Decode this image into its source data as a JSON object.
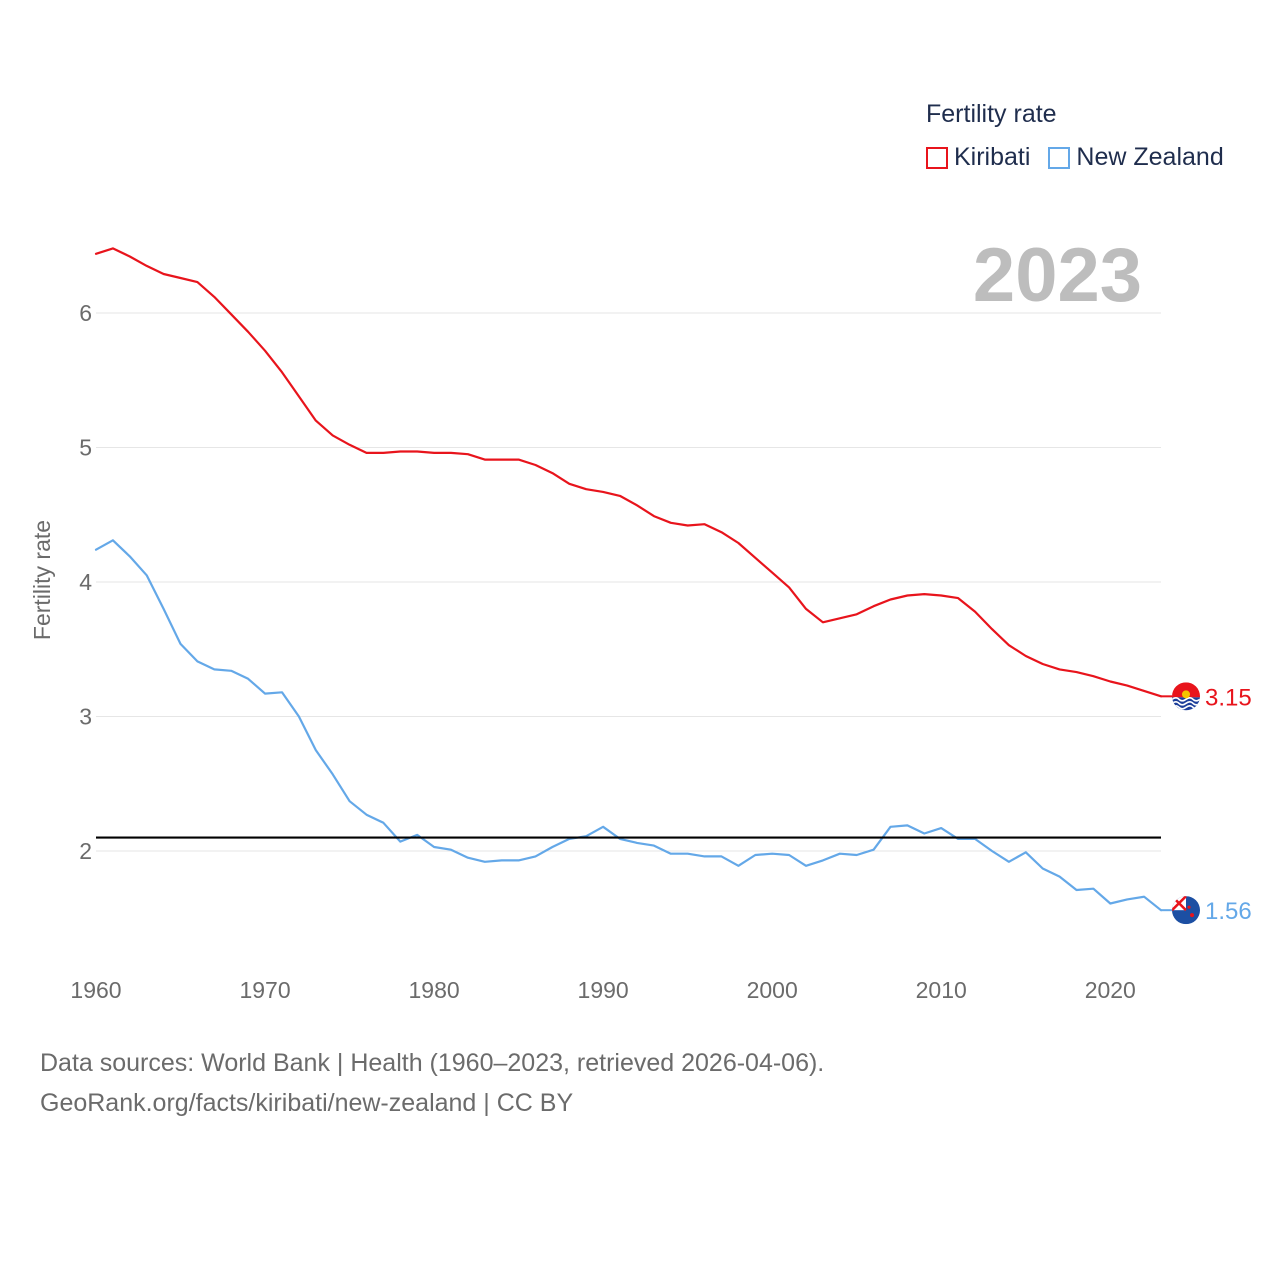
{
  "legend": {
    "title": "Fertility rate",
    "items": [
      {
        "label": "Kiribati",
        "color": "#e8141c"
      },
      {
        "label": "New Zealand",
        "color": "#64a8e8"
      }
    ]
  },
  "year_watermark": "2023",
  "footer": {
    "line1": "Data sources: World Bank | Health (1960–2023, retrieved 2026-04-06).",
    "line2": "GeoRank.org/facts/kiribati/new-zealand | CC BY"
  },
  "chart_data": {
    "type": "line",
    "ylabel": "Fertility rate",
    "xlabel": "",
    "xlim": [
      1960,
      2023
    ],
    "ylim": [
      1.4,
      6.6
    ],
    "xticks": [
      "1960",
      "1970",
      "1980",
      "1990",
      "2000",
      "2010",
      "2020"
    ],
    "yticks": [
      "2",
      "3",
      "4",
      "5",
      "6"
    ],
    "grid": true,
    "reference_line": {
      "value": 2.1,
      "color": "#000000"
    },
    "x": [
      1960,
      1961,
      1962,
      1963,
      1964,
      1965,
      1966,
      1967,
      1968,
      1969,
      1970,
      1971,
      1972,
      1973,
      1974,
      1975,
      1976,
      1977,
      1978,
      1979,
      1980,
      1981,
      1982,
      1983,
      1984,
      1985,
      1986,
      1987,
      1988,
      1989,
      1990,
      1991,
      1992,
      1993,
      1994,
      1995,
      1996,
      1997,
      1998,
      1999,
      2000,
      2001,
      2002,
      2003,
      2004,
      2005,
      2006,
      2007,
      2008,
      2009,
      2010,
      2011,
      2012,
      2013,
      2014,
      2015,
      2016,
      2017,
      2018,
      2019,
      2020,
      2021,
      2022,
      2023
    ],
    "series": [
      {
        "name": "Kiribati",
        "color": "#e8141c",
        "end_label": "3.15",
        "values": [
          6.44,
          6.48,
          6.42,
          6.35,
          6.29,
          6.26,
          6.23,
          6.12,
          5.99,
          5.86,
          5.72,
          5.56,
          5.38,
          5.2,
          5.09,
          5.02,
          4.96,
          4.96,
          4.97,
          4.97,
          4.96,
          4.96,
          4.95,
          4.91,
          4.91,
          4.91,
          4.87,
          4.81,
          4.73,
          4.69,
          4.67,
          4.64,
          4.57,
          4.49,
          4.44,
          4.42,
          4.43,
          4.37,
          4.29,
          4.18,
          4.07,
          3.96,
          3.8,
          3.7,
          3.73,
          3.76,
          3.82,
          3.87,
          3.9,
          3.91,
          3.9,
          3.88,
          3.78,
          3.65,
          3.53,
          3.45,
          3.39,
          3.35,
          3.33,
          3.3,
          3.26,
          3.23,
          3.19,
          3.15
        ]
      },
      {
        "name": "New Zealand",
        "color": "#64a8e8",
        "end_label": "1.56",
        "values": [
          4.24,
          4.31,
          4.19,
          4.05,
          3.8,
          3.54,
          3.41,
          3.35,
          3.34,
          3.28,
          3.17,
          3.18,
          3.0,
          2.75,
          2.57,
          2.37,
          2.27,
          2.21,
          2.07,
          2.12,
          2.03,
          2.01,
          1.95,
          1.92,
          1.93,
          1.93,
          1.96,
          2.03,
          2.09,
          2.11,
          2.18,
          2.09,
          2.06,
          2.04,
          1.98,
          1.98,
          1.96,
          1.96,
          1.89,
          1.97,
          1.98,
          1.97,
          1.89,
          1.93,
          1.98,
          1.97,
          2.01,
          2.18,
          2.19,
          2.13,
          2.17,
          2.09,
          2.09,
          2.0,
          1.92,
          1.99,
          1.87,
          1.81,
          1.71,
          1.72,
          1.61,
          1.64,
          1.66,
          1.56
        ]
      }
    ]
  }
}
